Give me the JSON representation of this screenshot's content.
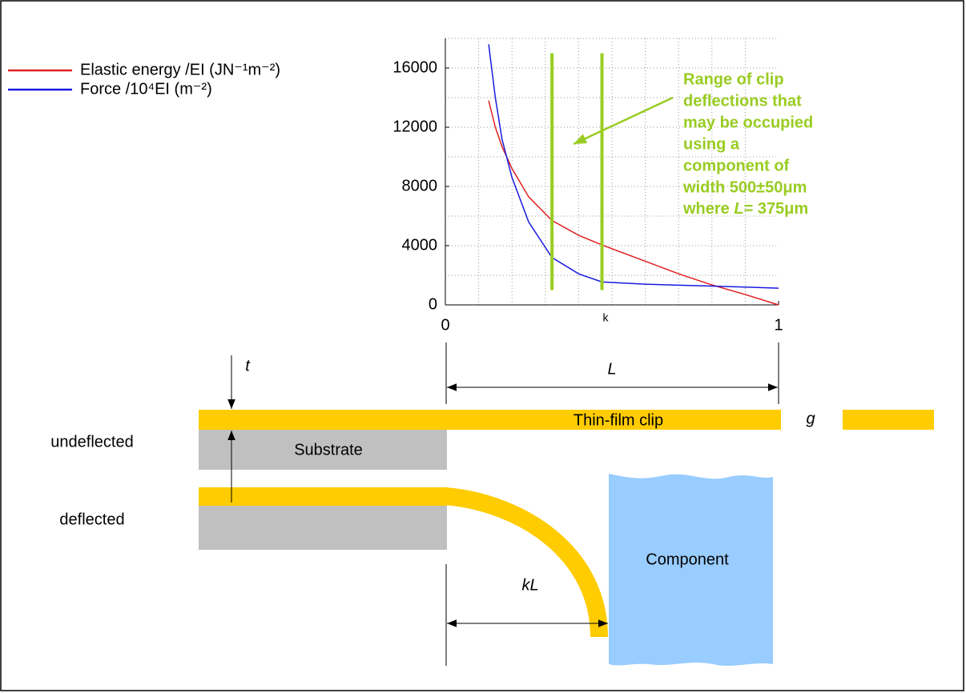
{
  "chart_data": {
    "type": "line",
    "legend": "top-left",
    "xlabel": "k",
    "x": [
      0.13,
      0.15,
      0.17,
      0.2,
      0.25,
      0.32,
      0.4,
      0.47,
      0.6,
      0.7,
      0.8,
      0.9,
      1.0
    ],
    "series": [
      {
        "name": "Elastic energy /EI (JN⁻¹m⁻²)",
        "color": "#e02020",
        "values": [
          13800,
          12000,
          10700,
          9200,
          7300,
          5700,
          4700,
          4050,
          2950,
          2100,
          1350,
          700,
          0
        ]
      },
      {
        "name": "Force /10⁴EI (m⁻²)",
        "color": "#1a1ae0",
        "values": [
          17600,
          14000,
          11200,
          8600,
          5600,
          3200,
          2100,
          1550,
          1400,
          1330,
          1270,
          1200,
          1130
        ]
      }
    ],
    "xlim": [
      0,
      1
    ],
    "ylim": [
      0,
      18000
    ],
    "xticks": [
      0,
      1
    ],
    "yticks": [
      0,
      4000,
      8000,
      12000,
      16000
    ],
    "grid": true,
    "xgrid": [
      0.1,
      0.2,
      0.3,
      0.4,
      0.5,
      0.6,
      0.7,
      0.8,
      0.9
    ],
    "ygrid": [
      2000,
      6000,
      10000,
      14000,
      18000
    ],
    "range_lines": [
      {
        "x": 0.32,
        "y": [
          1000,
          17000
        ]
      },
      {
        "x": 0.47,
        "y": [
          1000,
          17000
        ]
      }
    ],
    "range_color": "#99cc22",
    "annotation": {
      "lines": [
        "Range of clip",
        "deflections that",
        "may be occupied",
        "using a",
        "component of",
        "width 500±50μm"
      ],
      "last_line": {
        "before": "where ",
        "italic": "L",
        "after": "= 375μm"
      }
    }
  },
  "diagram": {
    "t": "t",
    "L": "L",
    "g": "g",
    "kL": "kL",
    "clip": "Thin-film clip",
    "substrate": "Substrate",
    "component": "Component",
    "undeflected": "undeflected",
    "deflected": "deflected"
  }
}
